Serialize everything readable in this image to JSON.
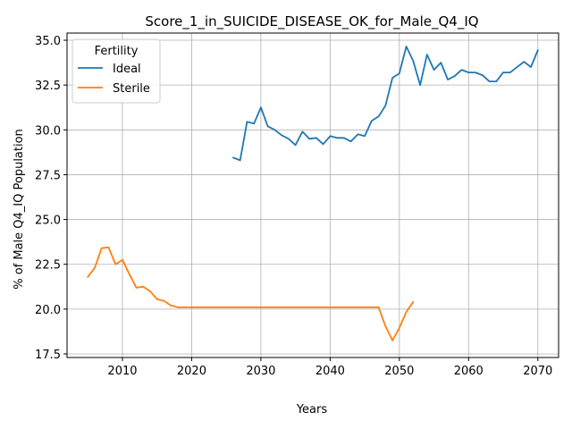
{
  "chart_data": {
    "type": "line",
    "title": "Score_1_in_SUICIDE_DISEASE_OK_for_Male_Q4_IQ",
    "xlabel": "Years",
    "ylabel": "% of Male Q4_IQ Population",
    "xlim": [
      2002,
      2073
    ],
    "ylim": [
      17.3,
      35.4
    ],
    "xticks": [
      2010,
      2020,
      2030,
      2040,
      2050,
      2060,
      2070
    ],
    "yticks": [
      17.5,
      20.0,
      22.5,
      25.0,
      27.5,
      30.0,
      32.5,
      35.0
    ],
    "xtick_labels": [
      "2010",
      "2020",
      "2030",
      "2040",
      "2050",
      "2060",
      "2070"
    ],
    "ytick_labels": [
      "17.5",
      "20.0",
      "22.5",
      "25.0",
      "27.5",
      "30.0",
      "32.5",
      "35.0"
    ],
    "grid": true,
    "legend": {
      "title": "Fertility",
      "placement": "upper-left"
    },
    "series": [
      {
        "name": "Ideal",
        "color": "#1f77b4",
        "x": [
          2026,
          2027,
          2028,
          2029,
          2030,
          2031,
          2032,
          2033,
          2034,
          2035,
          2036,
          2037,
          2038,
          2039,
          2040,
          2041,
          2042,
          2043,
          2044,
          2045,
          2046,
          2047,
          2048,
          2049,
          2050,
          2051,
          2052,
          2053,
          2054,
          2055,
          2056,
          2057,
          2058,
          2059,
          2060,
          2061,
          2062,
          2063,
          2064,
          2065,
          2066,
          2067,
          2068,
          2069,
          2070
        ],
        "y": [
          28.45,
          28.3,
          30.45,
          30.35,
          31.25,
          30.2,
          30.0,
          29.7,
          29.5,
          29.15,
          29.9,
          29.5,
          29.55,
          29.2,
          29.65,
          29.55,
          29.55,
          29.35,
          29.75,
          29.65,
          30.5,
          30.75,
          31.35,
          32.9,
          33.15,
          34.65,
          33.85,
          32.5,
          34.2,
          33.35,
          33.75,
          32.8,
          33.0,
          33.35,
          33.2,
          33.2,
          33.05,
          32.7,
          32.7,
          33.2,
          33.2,
          33.5,
          33.8,
          33.5,
          34.45
        ]
      },
      {
        "name": "Sterile",
        "color": "#ff7f0e",
        "x": [
          2005,
          2006,
          2007,
          2008,
          2009,
          2010,
          2011,
          2012,
          2013,
          2014,
          2015,
          2016,
          2017,
          2018,
          2019,
          2020,
          2021,
          2022,
          2023,
          2024,
          2025,
          2026,
          2027,
          2028,
          2029,
          2030,
          2031,
          2032,
          2033,
          2034,
          2035,
          2036,
          2037,
          2038,
          2039,
          2040,
          2041,
          2042,
          2043,
          2044,
          2045,
          2046,
          2047,
          2048,
          2049,
          2050,
          2051,
          2052
        ],
        "y": [
          21.8,
          22.3,
          23.4,
          23.45,
          22.5,
          22.75,
          21.95,
          21.2,
          21.25,
          21.0,
          20.55,
          20.45,
          20.2,
          20.1,
          20.1,
          20.1,
          20.1,
          20.1,
          20.1,
          20.1,
          20.1,
          20.1,
          20.1,
          20.1,
          20.1,
          20.1,
          20.1,
          20.1,
          20.1,
          20.1,
          20.1,
          20.1,
          20.1,
          20.1,
          20.1,
          20.1,
          20.1,
          20.1,
          20.1,
          20.1,
          20.1,
          20.1,
          20.1,
          19.05,
          18.25,
          18.95,
          19.85,
          20.4
        ]
      }
    ]
  }
}
